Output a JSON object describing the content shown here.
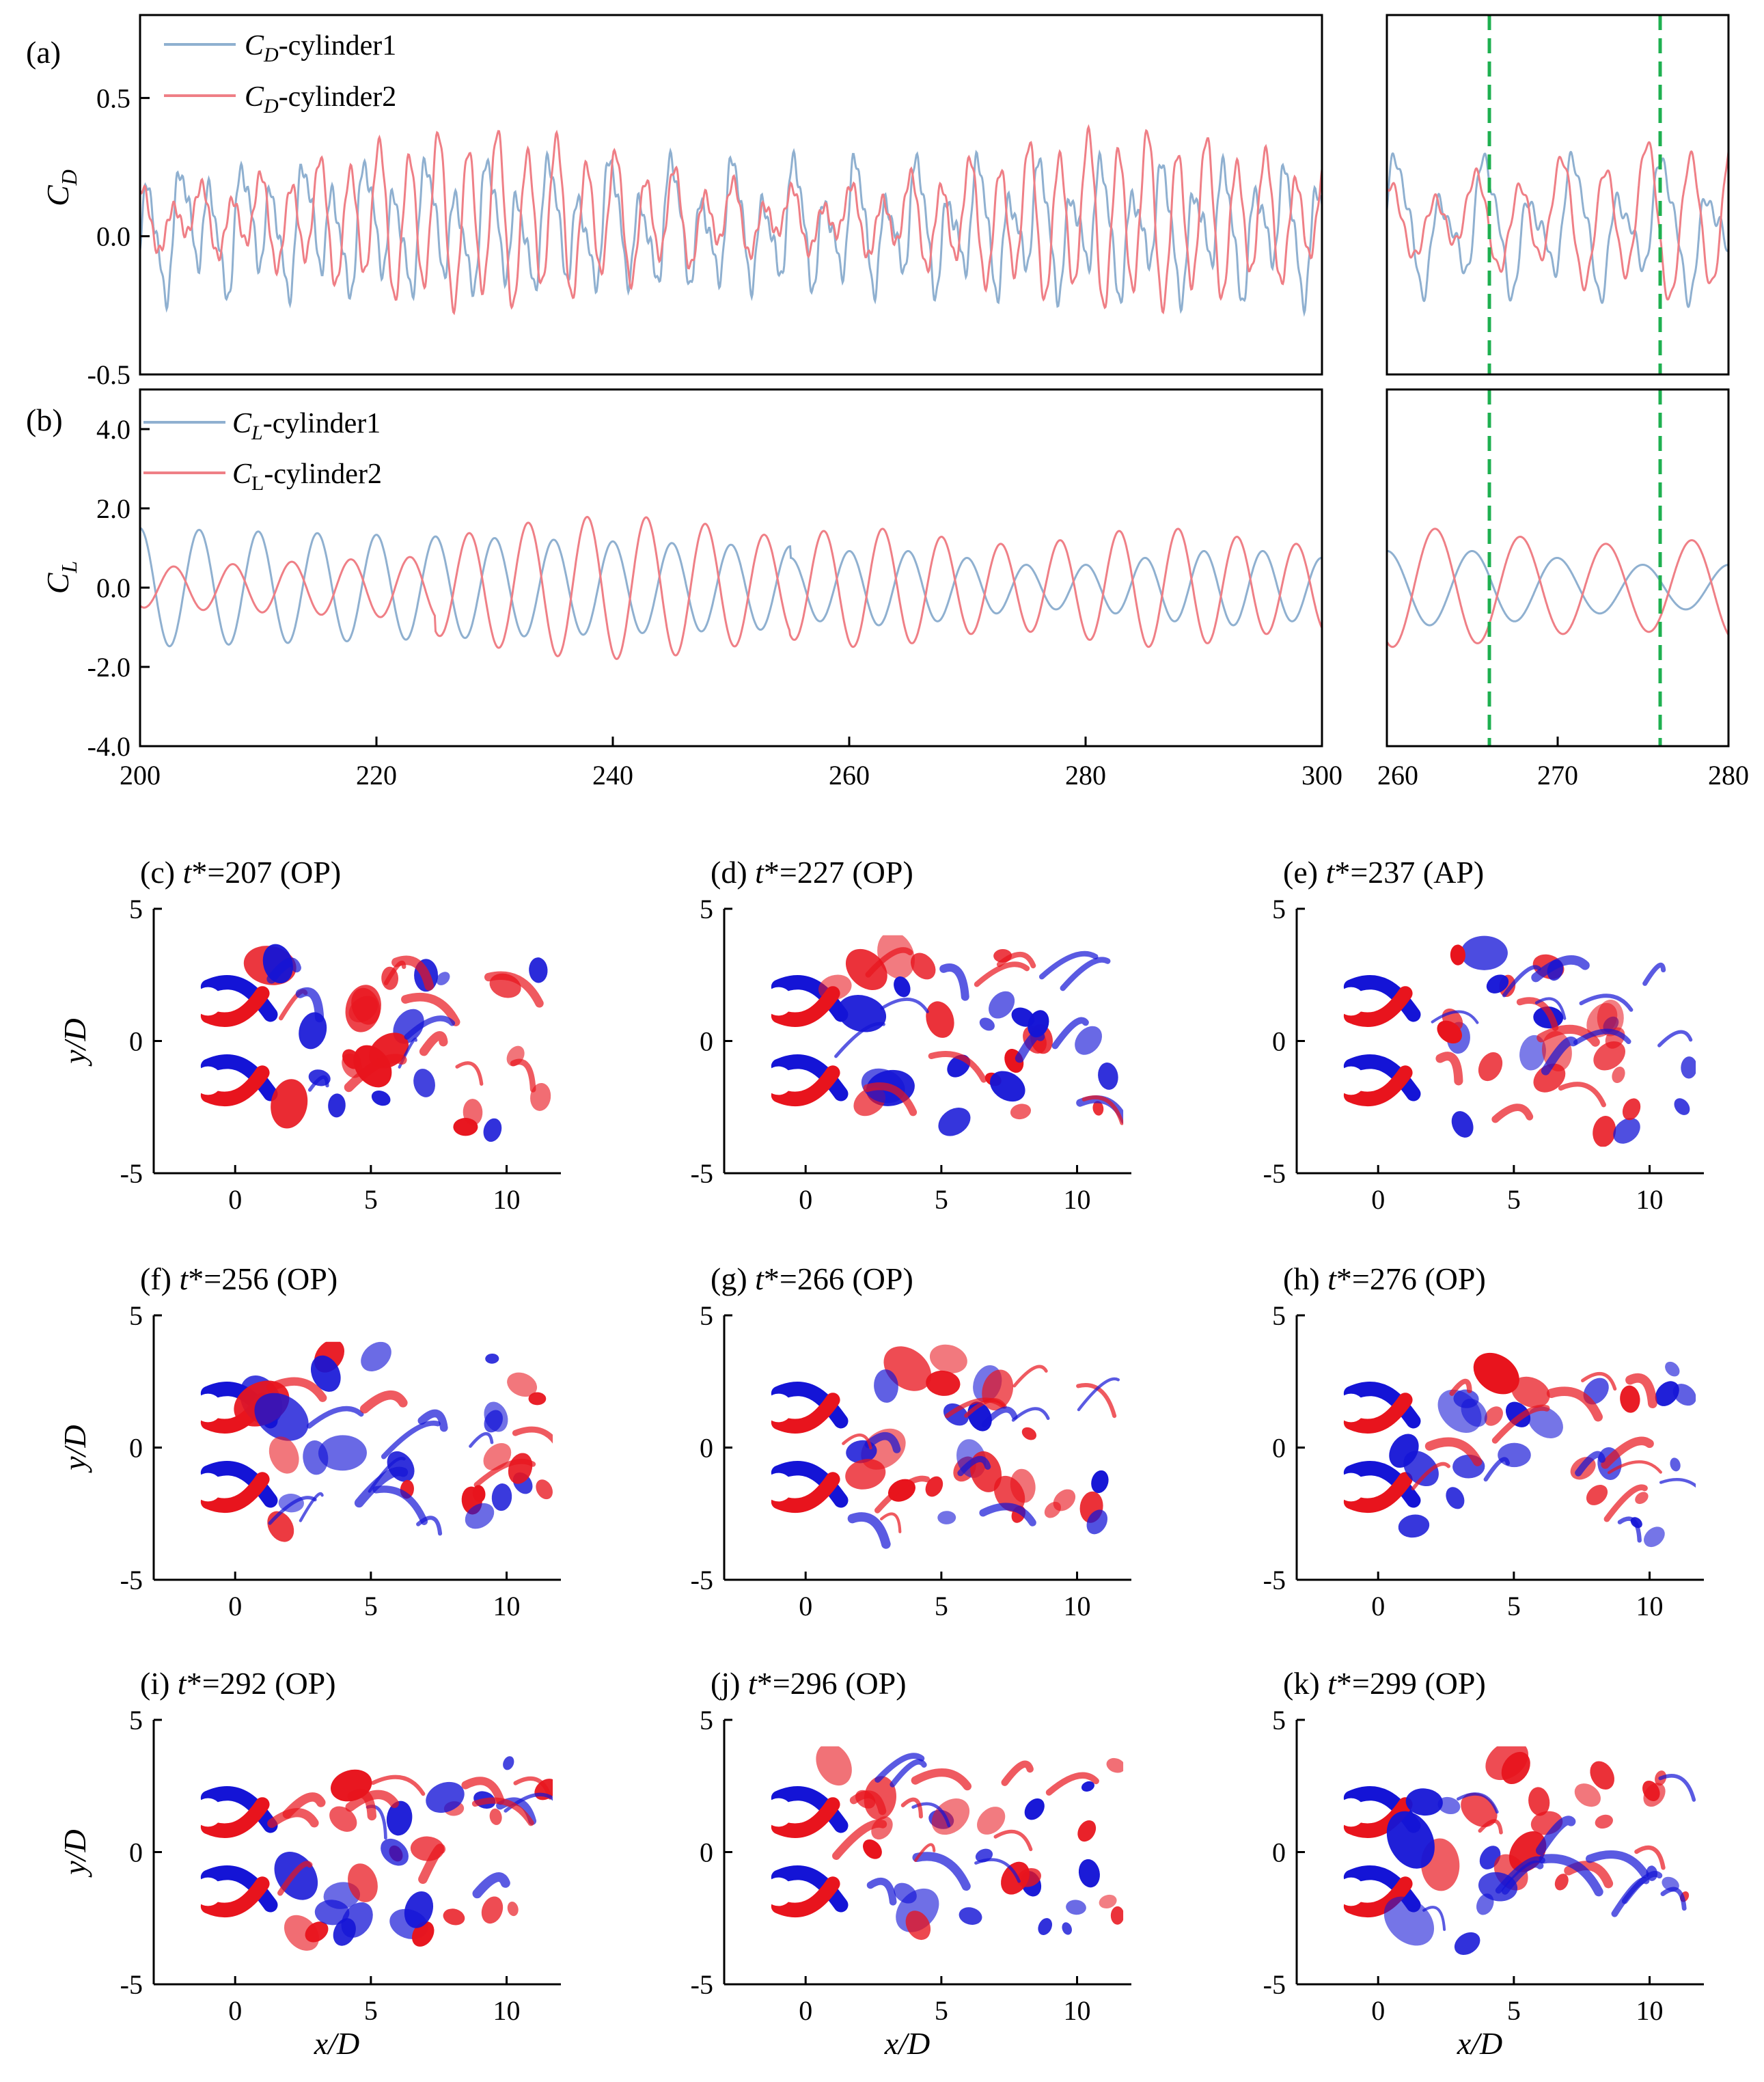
{
  "colors": {
    "cyl1": "#8fb0d0",
    "cyl2": "#ef7f86",
    "marker": "#1fb050",
    "pos": "#e8141d",
    "neg": "#1414d6"
  },
  "chart_data": [
    {
      "id": "a",
      "type": "line",
      "label": "(a)",
      "ylabel_main": "C",
      "ylabel_sub": "D",
      "xlim": [
        200,
        300
      ],
      "ylim": [
        -0.5,
        0.8
      ],
      "yticks": [
        "0.5",
        "0.0",
        "-0.5"
      ],
      "yticks_values": [
        0.5,
        0.0,
        -0.5
      ],
      "series": [
        {
          "name_main": "C",
          "name_sub": "D",
          "name_rest": "-cylinder1",
          "amplitude": 0.2,
          "mean": 0.0,
          "period_T": 5.0,
          "note": "cylinder1 drag coefficient, oscillates roughly -0.3 to 0.4"
        },
        {
          "name_main": "C",
          "name_sub": "D",
          "name_rest": "-cylinder2",
          "amplitude": 0.25,
          "mean": 0.05,
          "period_T": 2.5,
          "note": "cylinder2 drag coefficient, oscillates roughly -0.3 to 0.5"
        }
      ]
    },
    {
      "id": "b",
      "type": "line",
      "label": "(b)",
      "ylabel_main": "C",
      "ylabel_sub": "L",
      "xlim": [
        200,
        300
      ],
      "ylim": [
        -4.0,
        5.0
      ],
      "yticks": [
        "4.0",
        "2.0",
        "0.0",
        "-2.0",
        "-4.0"
      ],
      "yticks_values": [
        4.0,
        2.0,
        0.0,
        -2.0,
        -4.0
      ],
      "xticks": [
        "200",
        "220",
        "240",
        "260",
        "280",
        "300"
      ],
      "xticks_values": [
        200,
        220,
        240,
        260,
        280,
        300
      ],
      "series": [
        {
          "name_main": "C",
          "name_sub": "L",
          "name_rest": "-cylinder1",
          "amplitude_start": 1.5,
          "amplitude_end": 1.0,
          "period_T": 5.0
        },
        {
          "name_main": "C",
          "name_sub": "L",
          "name_rest": "-cylinder2",
          "amplitude_start": 0.5,
          "amplitude_peak": 1.8,
          "period_T": 5.0
        }
      ]
    },
    {
      "id": "inset",
      "type": "line",
      "xlim": [
        260,
        280
      ],
      "xticks": [
        "260",
        "270",
        "280"
      ],
      "xticks_values": [
        260,
        270,
        280
      ],
      "marker_lines_t": [
        266,
        276
      ]
    }
  ],
  "panels": [
    {
      "label": "(c) ",
      "tstar": "t",
      "tval": "*=207 (OP)"
    },
    {
      "label": "(d) ",
      "tstar": "t",
      "tval": "*=227 (OP)"
    },
    {
      "label": "(e) ",
      "tstar": "t",
      "tval": "*=237 (AP)"
    },
    {
      "label": "(f) ",
      "tstar": "t",
      "tval": "*=256 (OP)"
    },
    {
      "label": "(g) ",
      "tstar": "t",
      "tval": "*=266 (OP)"
    },
    {
      "label": "(h) ",
      "tstar": "t",
      "tval": "*=276 (OP)"
    },
    {
      "label": "(i) ",
      "tstar": "t",
      "tval": "*=292 (OP)"
    },
    {
      "label": "(j) ",
      "tstar": "t",
      "tval": "*=296 (OP)"
    },
    {
      "label": "(k) ",
      "tstar": "t",
      "tval": "*=299 (OP)"
    }
  ],
  "vort_axes": {
    "xlim": [
      -3,
      12
    ],
    "ylim": [
      -5,
      5
    ],
    "xticks": [
      "0",
      "5",
      "10"
    ],
    "xticks_values": [
      0,
      5,
      10
    ],
    "yticks": [
      "5",
      "0",
      "-5"
    ],
    "yticks_values": [
      5,
      0,
      -5
    ],
    "xlabel": "x/D",
    "ylabel": "y/D",
    "cylinders": [
      {
        "x": -1,
        "y": 1.5
      },
      {
        "x": -1,
        "y": -1.5
      }
    ]
  }
}
